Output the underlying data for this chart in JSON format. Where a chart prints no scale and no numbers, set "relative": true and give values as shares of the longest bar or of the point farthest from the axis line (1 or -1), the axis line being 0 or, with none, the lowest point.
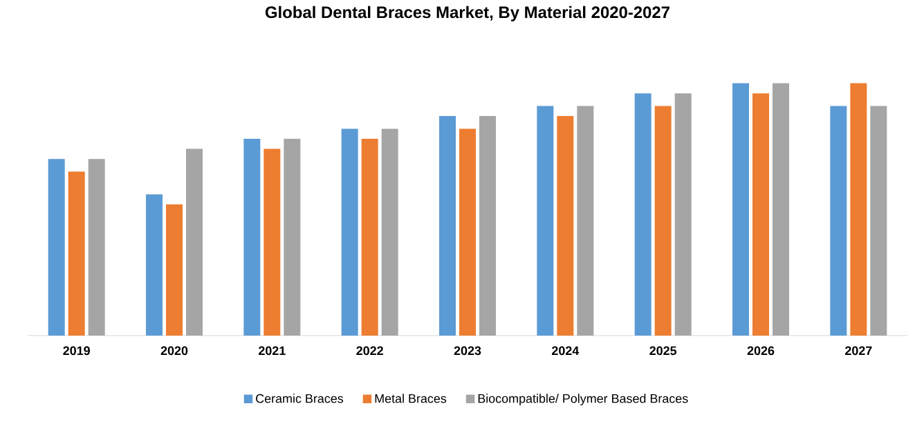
{
  "chart_data": {
    "type": "bar",
    "title": "Global Dental Braces Market, By Material  2020-2027",
    "relative": true,
    "legend": "bottom",
    "categories": [
      "2019",
      "2020",
      "2021",
      "2022",
      "2023",
      "2024",
      "2025",
      "2026",
      "2027"
    ],
    "series": [
      {
        "name": "Ceramic Braces",
        "color": "#5b9bd5",
        "values": [
          0.7,
          0.56,
          0.78,
          0.82,
          0.87,
          0.91,
          0.96,
          1,
          0.91
        ]
      },
      {
        "name": "Metal Braces",
        "color": "#ed7d31",
        "values": [
          0.65,
          0.52,
          0.74,
          0.78,
          0.82,
          0.87,
          0.91,
          0.96,
          1
        ]
      },
      {
        "name": "Biocompatible/ Polymer Based Braces",
        "color": "#a5a5a5",
        "values": [
          0.7,
          0.74,
          0.78,
          0.82,
          0.87,
          0.91,
          0.96,
          1,
          0.91
        ]
      }
    ]
  }
}
